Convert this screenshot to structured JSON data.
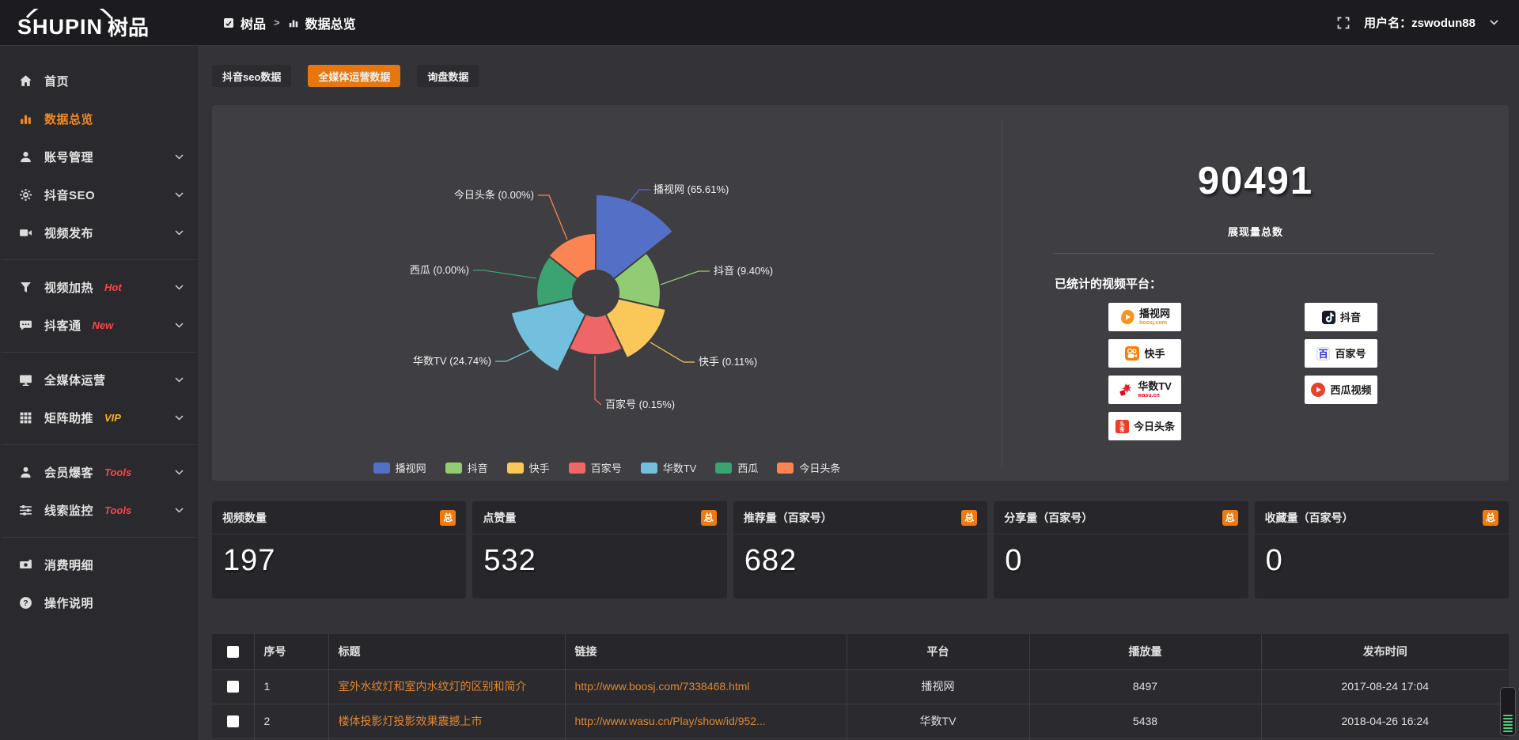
{
  "header": {
    "logo_primary": "SHUPIN",
    "logo_secondary": "树品",
    "breadcrumb_root": "树品",
    "breadcrumb_sep": ">",
    "breadcrumb_current": "数据总览",
    "username": "用户名：zswodun88"
  },
  "sidebar": {
    "items": [
      {
        "label": "首页",
        "icon": "home-icon",
        "active": false,
        "expandable": false,
        "divider_after": false
      },
      {
        "label": "数据总览",
        "icon": "bar-chart-icon",
        "active": true,
        "expandable": false,
        "divider_after": false
      },
      {
        "label": "账号管理",
        "icon": "user-icon",
        "active": false,
        "expandable": true,
        "divider_after": false
      },
      {
        "label": "抖音SEO",
        "icon": "gear-icon",
        "active": false,
        "expandable": true,
        "divider_after": false
      },
      {
        "label": "视频发布",
        "icon": "video-icon",
        "active": false,
        "expandable": true,
        "divider_after": true
      },
      {
        "label": "视频加热",
        "icon": "heat-icon",
        "badge": "Hot",
        "badge_color": "#ff4545",
        "active": false,
        "expandable": true,
        "divider_after": false
      },
      {
        "label": "抖客通",
        "icon": "chat-icon",
        "badge": "New",
        "badge_color": "#ff4545",
        "active": false,
        "expandable": true,
        "divider_after": true
      },
      {
        "label": "全媒体运营",
        "icon": "monitor-icon",
        "active": false,
        "expandable": true,
        "divider_after": false
      },
      {
        "label": "矩阵助推",
        "icon": "grid-icon",
        "badge": "VIP",
        "badge_color": "#f0b429",
        "active": false,
        "expandable": true,
        "divider_after": true
      },
      {
        "label": "会员爆客",
        "icon": "member-icon",
        "badge": "Tools",
        "badge_color": "#ff4545",
        "active": false,
        "expandable": true,
        "divider_after": false
      },
      {
        "label": "线索监控",
        "icon": "sliders-icon",
        "badge": "Tools",
        "badge_color": "#ff4545",
        "active": false,
        "expandable": true,
        "divider_after": true
      },
      {
        "label": "消费明细",
        "icon": "money-icon",
        "active": false,
        "expandable": false,
        "divider_after": false
      },
      {
        "label": "操作说明",
        "icon": "question-icon",
        "active": false,
        "expandable": false,
        "divider_after": false
      }
    ]
  },
  "tabs": [
    {
      "label": "抖音seo数据",
      "active": false
    },
    {
      "label": "全媒体运营数据",
      "active": true
    },
    {
      "label": "询盘数据",
      "active": false
    }
  ],
  "chart_data": {
    "type": "pie",
    "rose": true,
    "legend_position": "bottom",
    "inner_radius": 29,
    "display_radii": [
      125,
      82,
      91,
      78,
      110,
      75,
      76
    ],
    "series": [
      {
        "name": "播视网",
        "value": 65.61,
        "label": "播视网 (65.61%)",
        "color": "#5470c6"
      },
      {
        "name": "抖音",
        "value": 9.4,
        "label": "抖音 (9.40%)",
        "color": "#91cc75"
      },
      {
        "name": "快手",
        "value": 0.11,
        "label": "快手 (0.11%)",
        "color": "#fac858"
      },
      {
        "name": "百家号",
        "value": 0.15,
        "label": "百家号 (0.15%)",
        "color": "#ee6666"
      },
      {
        "name": "华数TV",
        "value": 24.74,
        "label": "华数TV (24.74%)",
        "color": "#73c0de"
      },
      {
        "name": "西瓜",
        "value": 0.0,
        "label": "西瓜 (0.00%)",
        "color": "#3ba272"
      },
      {
        "name": "今日头条",
        "value": 0.0,
        "label": "今日头条 (0.00%)",
        "color": "#fc8452"
      }
    ]
  },
  "summary": {
    "total": "90491",
    "total_label": "展现量总数",
    "platforms_title": "已统计的视频平台：",
    "platforms": [
      {
        "name": "播视网",
        "sub": "boosj.com",
        "icon": "boosj",
        "color": "#f7941d"
      },
      {
        "name": "抖音",
        "sub": "",
        "icon": "douyin",
        "color": "#161823"
      },
      {
        "name": "快手",
        "sub": "",
        "icon": "kuaishou",
        "color": "#ff7e00"
      },
      {
        "name": "百家号",
        "sub": "",
        "icon": "baijia",
        "color": "#2932e1"
      },
      {
        "name": "华数TV",
        "sub": "wasu.cn",
        "icon": "wasu",
        "color": "#e60012"
      },
      {
        "name": "西瓜视频",
        "sub": "",
        "icon": "xigua",
        "color": "#e8412c"
      },
      {
        "name": "今日头条",
        "sub": "",
        "icon": "toutiao",
        "color": "#ed3b24"
      }
    ]
  },
  "stat_cards": [
    {
      "label": "视频数量",
      "badge": "总",
      "value": "197"
    },
    {
      "label": "点赞量",
      "badge": "总",
      "value": "532"
    },
    {
      "label": "推荐量（百家号）",
      "badge": "总",
      "value": "682"
    },
    {
      "label": "分享量（百家号）",
      "badge": "总",
      "value": "0"
    },
    {
      "label": "收藏量（百家号）",
      "badge": "总",
      "value": "0"
    }
  ],
  "table": {
    "columns": [
      "",
      "序号",
      "标题",
      "链接",
      "平台",
      "播放量",
      "发布时间"
    ],
    "rows": [
      {
        "index": "1",
        "title": "室外水纹灯和室内水纹灯的区别和简介",
        "link": "http://www.boosj.com/7338468.html",
        "platform": "播视网",
        "views": "8497",
        "time": "2017-08-24 17:04"
      },
      {
        "index": "2",
        "title": "楼体投影灯投影效果震撼上市",
        "link": "http://www.wasu.cn/Play/show/id/952...",
        "platform": "华数TV",
        "views": "5438",
        "time": "2018-04-26 16:24"
      }
    ]
  },
  "colors": {
    "accent": "#e7770d",
    "active_menu": "#f5891d",
    "table_link": "#e2882e",
    "badge_total": "#ef7b10",
    "widget_bars": "#4ecf7e"
  }
}
